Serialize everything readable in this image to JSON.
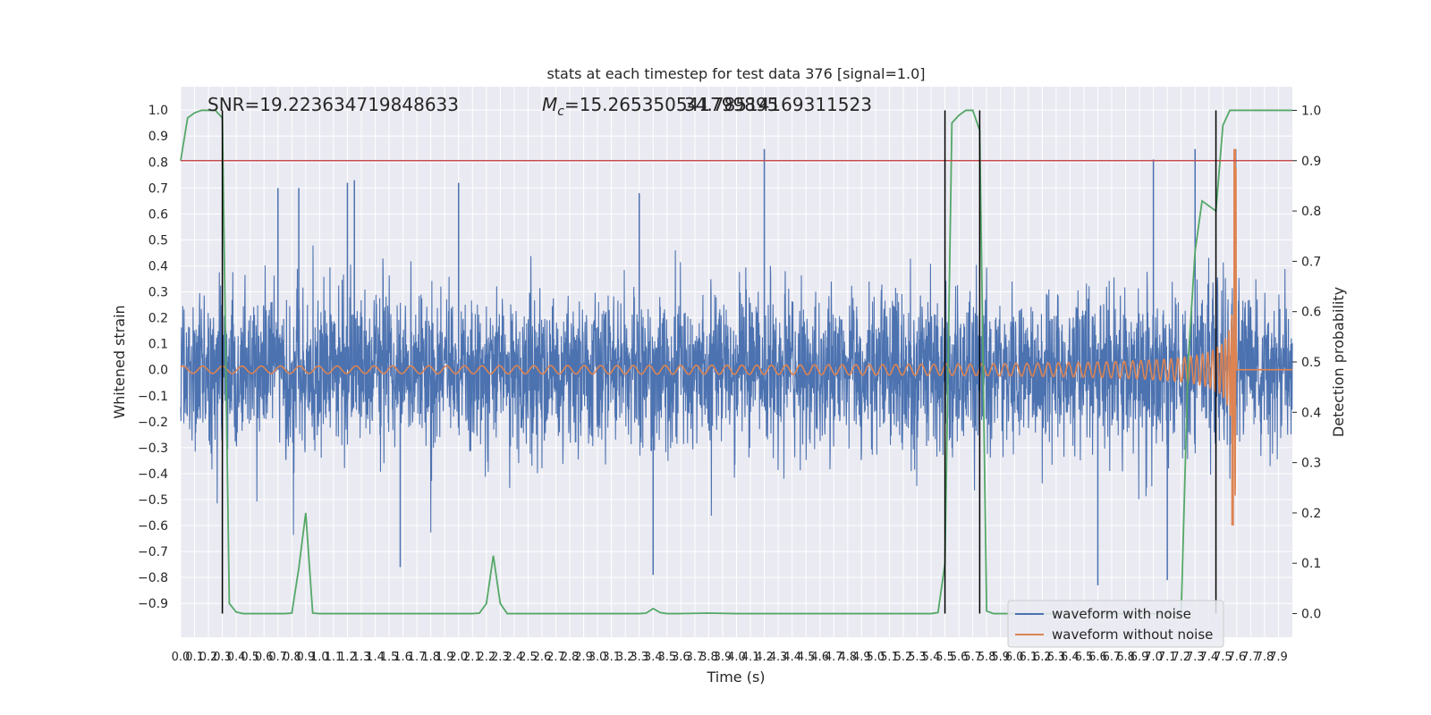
{
  "chart_data": {
    "type": "line",
    "title": "stats at each timestep for test data 376 [signal=1.0]",
    "xlabel": "Time (s)",
    "ylabel": "Whitened strain",
    "y2label": "Detection probability",
    "xlim": [
      0,
      8.0
    ],
    "ylim": [
      -1.03,
      1.09
    ],
    "y2lim": [
      -0.047,
      1.047
    ],
    "xticks": [
      "0.0",
      "0.1",
      "0.2",
      "0.3",
      "0.4",
      "0.5",
      "0.6",
      "0.7",
      "0.8",
      "0.9",
      "1.0",
      "1.1",
      "1.2",
      "1.3",
      "1.4",
      "1.5",
      "1.6",
      "1.7",
      "1.8",
      "1.9",
      "2.0",
      "2.1",
      "2.2",
      "2.3",
      "2.4",
      "2.5",
      "2.6",
      "2.7",
      "2.8",
      "2.9",
      "3.0",
      "3.1",
      "3.2",
      "3.3",
      "3.4",
      "3.5",
      "3.6",
      "3.7",
      "3.8",
      "3.9",
      "4.0",
      "4.1",
      "4.2",
      "4.3",
      "4.4",
      "4.5",
      "4.6",
      "4.7",
      "4.8",
      "4.9",
      "5.0",
      "5.1",
      "5.2",
      "5.3",
      "5.4",
      "5.5",
      "5.6",
      "5.7",
      "5.8",
      "5.9",
      "6.0",
      "6.1",
      "6.2",
      "6.3",
      "6.4",
      "6.5",
      "6.6",
      "6.7",
      "6.8",
      "6.9",
      "7.0",
      "7.1",
      "7.2",
      "7.3",
      "7.4",
      "7.5",
      "7.6",
      "7.7",
      "7.8",
      "7.9"
    ],
    "yticks": [
      "-0.9",
      "-0.8",
      "-0.7",
      "-0.6",
      "-0.5",
      "-0.4",
      "-0.3",
      "-0.2",
      "-0.1",
      "0.0",
      "0.1",
      "0.2",
      "0.3",
      "0.4",
      "0.5",
      "0.6",
      "0.7",
      "0.8",
      "0.9",
      "1.0"
    ],
    "y2ticks": [
      "0.0",
      "0.1",
      "0.2",
      "0.3",
      "0.4",
      "0.5",
      "0.6",
      "0.7",
      "0.8",
      "0.9",
      "1.0"
    ],
    "annotations": {
      "snr": "SNR=19.223634719848633",
      "mc_symbol": "M",
      "mc_sub": "c",
      "mc_value": "=15.265350541799895",
      "mc_overlap": "34.78514169311523"
    },
    "threshold": {
      "value": 0.9,
      "color": "#c44e52"
    },
    "vlines": [
      0.3,
      5.5,
      5.75,
      7.45
    ],
    "legend": {
      "placement": "lower-right",
      "entries": [
        {
          "label": "waveform with noise",
          "color": "#4c72b0"
        },
        {
          "label": "waveform without noise",
          "color": "#dd8452"
        }
      ]
    },
    "series": [
      {
        "name": "waveform with noise",
        "color": "#4c72b0",
        "noise_sigma": 0.15,
        "peak_max": 0.85,
        "peak_min": -0.88,
        "spikes": [
          {
            "x": 0.7,
            "v": 0.7
          },
          {
            "x": 0.85,
            "v": 0.7
          },
          {
            "x": 1.2,
            "v": 0.72
          },
          {
            "x": 1.25,
            "v": 0.73
          },
          {
            "x": 2.0,
            "v": 0.72
          },
          {
            "x": 3.3,
            "v": 0.68
          },
          {
            "x": 3.4,
            "v": -0.79
          },
          {
            "x": 4.2,
            "v": 0.85
          },
          {
            "x": 6.6,
            "v": -0.83
          },
          {
            "x": 7.0,
            "v": 0.81
          },
          {
            "x": 7.1,
            "v": -0.81
          },
          {
            "x": 7.3,
            "v": 0.85
          },
          {
            "x": 1.58,
            "v": -0.76
          }
        ]
      },
      {
        "name": "waveform without noise",
        "color": "#dd8452",
        "merger_time": 7.6,
        "amplitude_start": 0.012,
        "peak": 0.85,
        "trough": -0.6
      },
      {
        "name": "detection probability",
        "color": "#55a868",
        "x": [
          0.0,
          0.05,
          0.1,
          0.15,
          0.2,
          0.25,
          0.3,
          0.35,
          0.4,
          0.45,
          0.5,
          0.55,
          0.6,
          0.65,
          0.7,
          0.75,
          0.8,
          0.85,
          0.9,
          0.95,
          1.0,
          1.5,
          2.0,
          2.1,
          2.15,
          2.2,
          2.25,
          2.3,
          2.35,
          2.4,
          2.45,
          2.5,
          2.8,
          3.3,
          3.35,
          3.4,
          3.45,
          3.5,
          3.6,
          3.8,
          4.0,
          4.5,
          5.0,
          5.4,
          5.45,
          5.5,
          5.55,
          5.6,
          5.65,
          5.7,
          5.75,
          5.8,
          5.85,
          5.9,
          6.0,
          6.5,
          7.0,
          7.15,
          7.2,
          7.25,
          7.3,
          7.35,
          7.4,
          7.45,
          7.5,
          7.55,
          7.6,
          7.7,
          7.8,
          8.0
        ],
        "y": [
          0.9,
          0.985,
          0.995,
          1.0,
          1.0,
          1.0,
          0.985,
          0.02,
          0.003,
          0.0,
          0.0,
          0.0,
          0.0,
          0.0,
          0.0,
          0.0,
          0.001,
          0.09,
          0.2,
          0.001,
          0.0,
          0.0,
          0.0,
          0.0,
          0.001,
          0.02,
          0.115,
          0.02,
          0.0,
          0.0,
          0.0,
          0.0,
          0.0,
          0.0,
          0.001,
          0.01,
          0.002,
          0.0,
          0.0,
          0.001,
          0.0,
          0.0,
          0.0,
          0.0,
          0.002,
          0.1,
          0.975,
          0.99,
          1.0,
          1.0,
          0.96,
          0.005,
          0.0,
          0.0,
          0.0,
          0.0,
          0.0,
          0.0,
          0.003,
          0.5,
          0.72,
          0.82,
          0.81,
          0.8,
          0.97,
          1.0,
          1.0,
          1.0,
          1.0,
          1.0
        ]
      }
    ]
  }
}
